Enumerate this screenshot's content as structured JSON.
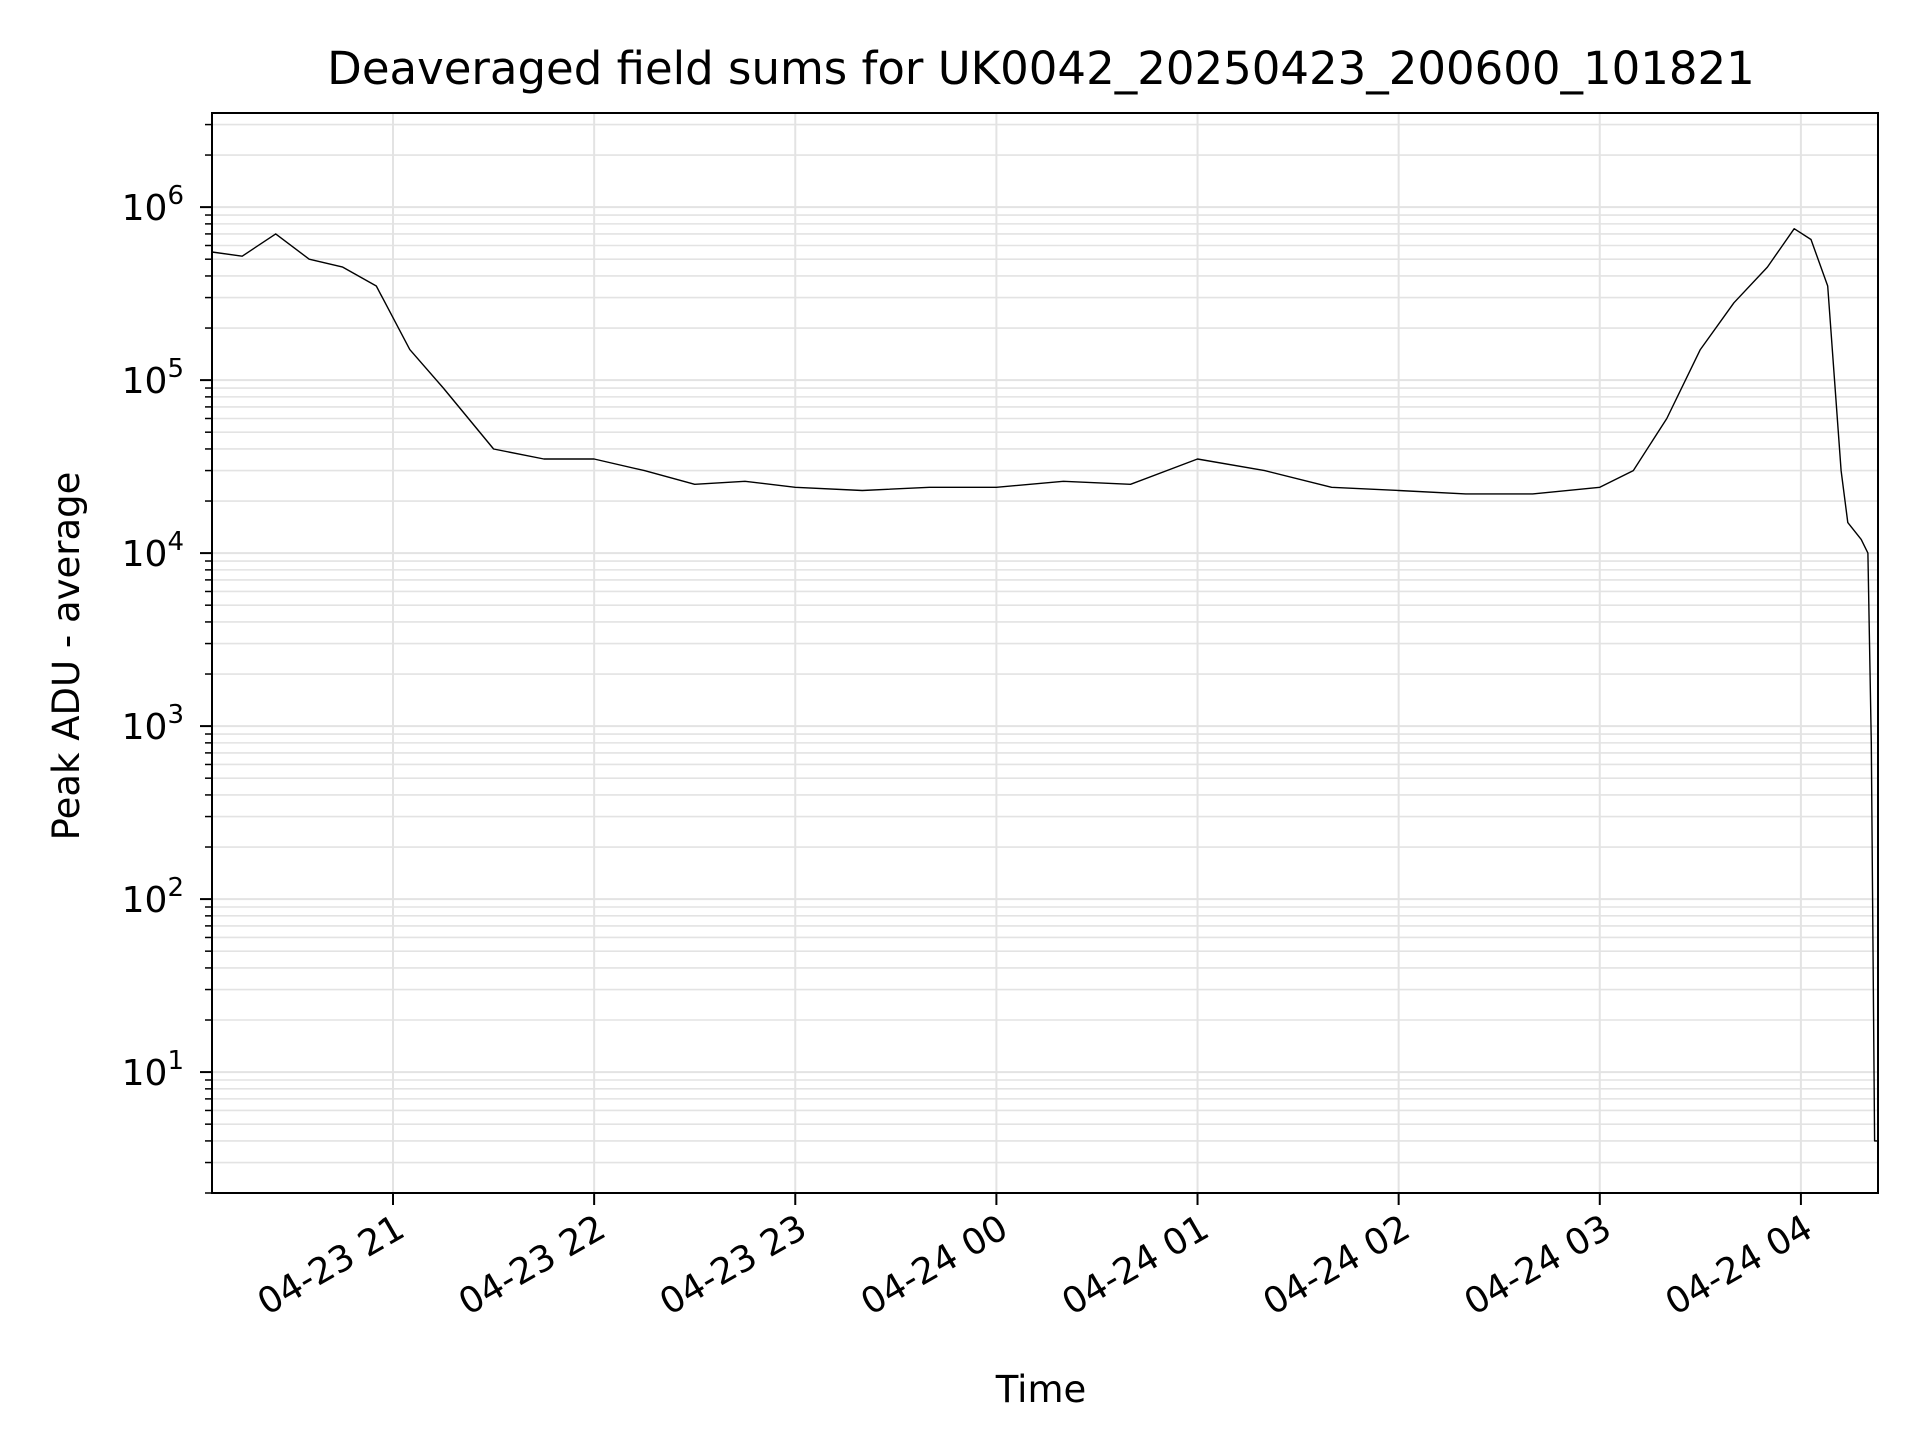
{
  "chart_data": {
    "type": "line",
    "title": "Deaveraged field sums for UK0042_20250423_200600_101821",
    "xlabel": "Time",
    "ylabel": "Peak ADU - average",
    "yscale": "log",
    "ylim": [
      2,
      3500000
    ],
    "xlim": [
      "2025-04-23 20:06",
      "2025-04-24 04:23"
    ],
    "grid": true,
    "legend": "none",
    "line_color": "#000000",
    "x_tick_labels": [
      "04-23 21",
      "04-23 22",
      "04-23 23",
      "04-24 00",
      "04-24 01",
      "04-24 02",
      "04-24 03",
      "04-24 04"
    ],
    "x_ticks": [
      "2025-04-23 21:00",
      "2025-04-23 22:00",
      "2025-04-23 23:00",
      "2025-04-24 00:00",
      "2025-04-24 01:00",
      "2025-04-24 02:00",
      "2025-04-24 03:00",
      "2025-04-24 04:00"
    ],
    "y_ticks": [
      10,
      100,
      1000,
      10000,
      100000,
      1000000
    ],
    "y_tick_labels": [
      {
        "base": "10",
        "exp": "1"
      },
      {
        "base": "10",
        "exp": "2"
      },
      {
        "base": "10",
        "exp": "3"
      },
      {
        "base": "10",
        "exp": "4"
      },
      {
        "base": "10",
        "exp": "5"
      },
      {
        "base": "10",
        "exp": "6"
      }
    ],
    "series": [
      {
        "x": [
          "2025-04-23 20:06",
          "2025-04-23 20:15",
          "2025-04-23 20:25",
          "2025-04-23 20:35",
          "2025-04-23 20:45",
          "2025-04-23 20:55",
          "2025-04-23 21:05",
          "2025-04-23 21:15",
          "2025-04-23 21:30",
          "2025-04-23 21:45",
          "2025-04-23 22:00",
          "2025-04-23 22:15",
          "2025-04-23 22:30",
          "2025-04-23 22:45",
          "2025-04-23 23:00",
          "2025-04-23 23:20",
          "2025-04-23 23:40",
          "2025-04-24 00:00",
          "2025-04-24 00:20",
          "2025-04-24 00:40",
          "2025-04-24 01:00",
          "2025-04-24 01:20",
          "2025-04-24 01:40",
          "2025-04-24 02:00",
          "2025-04-24 02:20",
          "2025-04-24 02:40",
          "2025-04-24 03:00",
          "2025-04-24 03:10",
          "2025-04-24 03:20",
          "2025-04-24 03:30",
          "2025-04-24 03:40",
          "2025-04-24 03:50",
          "2025-04-24 03:58",
          "2025-04-24 04:03",
          "2025-04-24 04:08",
          "2025-04-24 04:12",
          "2025-04-24 04:14",
          "2025-04-24 04:18",
          "2025-04-24 04:20",
          "2025-04-24 04:21",
          "2025-04-24 04:22",
          "2025-04-24 04:23"
        ],
        "y": [
          550000,
          520000,
          700000,
          500000,
          450000,
          350000,
          150000,
          90000,
          40000,
          35000,
          35000,
          30000,
          25000,
          26000,
          24000,
          23000,
          24000,
          24000,
          26000,
          25000,
          35000,
          30000,
          24000,
          23000,
          22000,
          22000,
          24000,
          30000,
          60000,
          150000,
          280000,
          450000,
          750000,
          650000,
          350000,
          30000,
          15000,
          12000,
          10000,
          800,
          4,
          4
        ]
      }
    ]
  }
}
